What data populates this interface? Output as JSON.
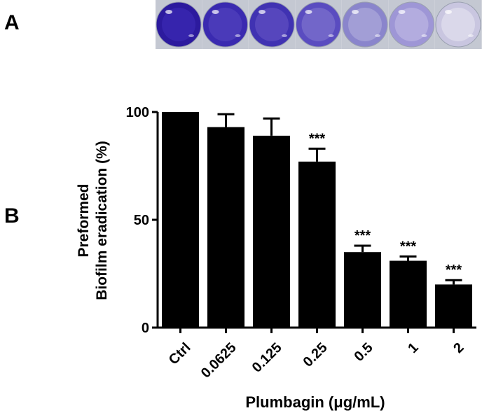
{
  "panels": {
    "a": "A",
    "b": "B"
  },
  "wells": [
    {
      "color": "#2c1a9e",
      "inner": "#3624ad"
    },
    {
      "color": "#3a2ab0",
      "inner": "#4a3ab9"
    },
    {
      "color": "#4032b2",
      "inner": "#5646bd"
    },
    {
      "color": "#5a4cc0",
      "inner": "#7266c9"
    },
    {
      "color": "#8a85cc",
      "inner": "#a29ed6"
    },
    {
      "color": "#9e96d6",
      "inner": "#b3acdf"
    },
    {
      "color": "#c9c6e0",
      "inner": "#dad8ea"
    }
  ],
  "chart_data": {
    "type": "bar",
    "categories": [
      "Ctrl",
      "0.0625",
      "0.125",
      "0.25",
      "0.5",
      "1",
      "2"
    ],
    "values": [
      100,
      93,
      89,
      77,
      35,
      31,
      20
    ],
    "errors": [
      0,
      6,
      8,
      6,
      3,
      2,
      2
    ],
    "annotations": [
      "",
      "",
      "",
      "***",
      "***",
      "***",
      "***"
    ],
    "ylim": [
      0,
      100
    ],
    "yticks": [
      0,
      50,
      100
    ],
    "ylabel_line1": "Preformed",
    "ylabel_line2": "Biofilm eradication (%)",
    "xlabel": "Plumbagin (μg/mL)",
    "bar_color": "#000000"
  }
}
